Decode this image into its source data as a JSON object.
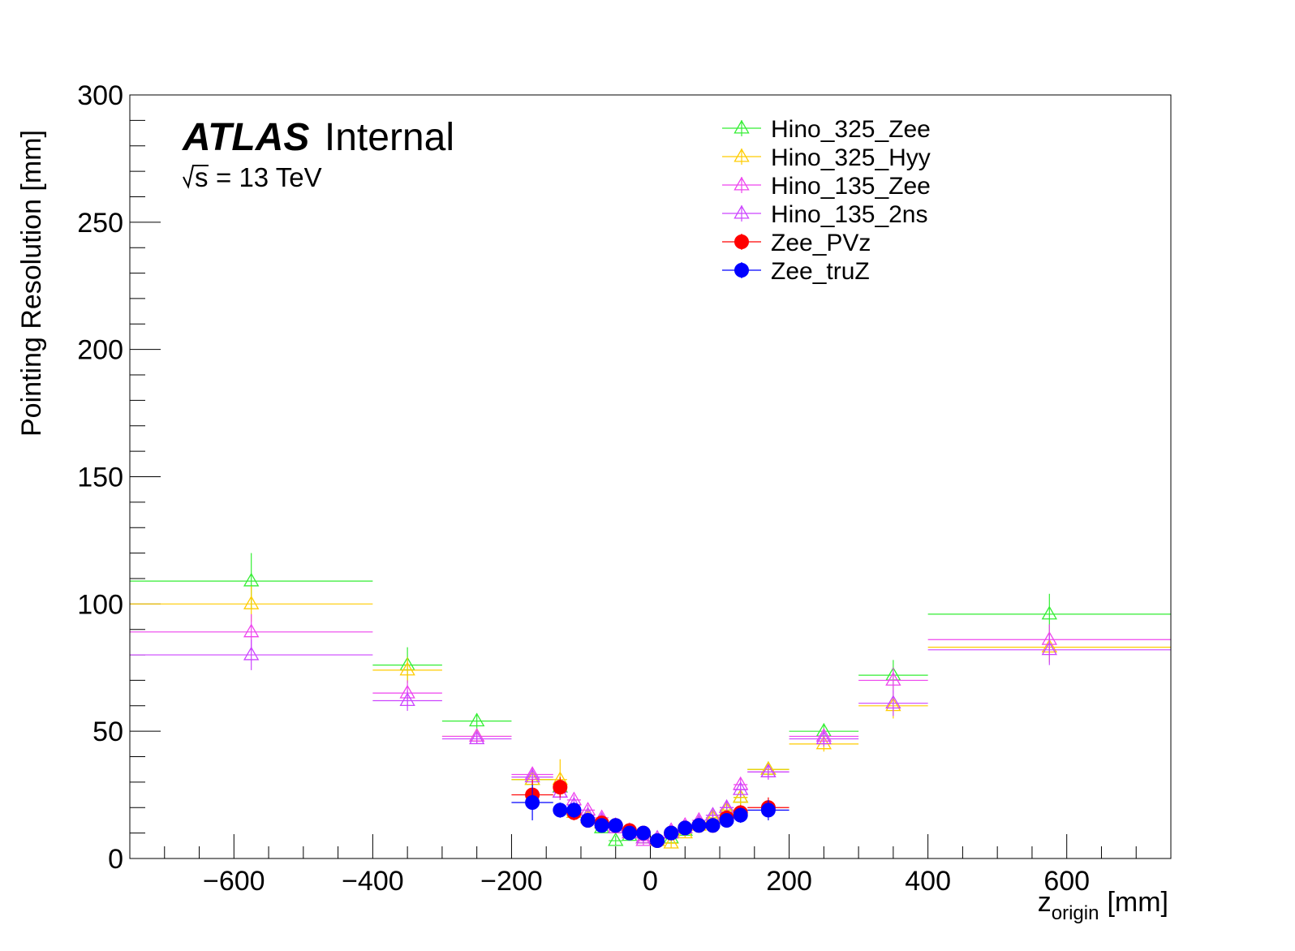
{
  "labels": {
    "experiment": "ATLAS",
    "status": "Internal",
    "energy_sqrt": "s",
    "energy_value": "= 13 TeV",
    "xlabel_main": "z",
    "xlabel_sub": "origin",
    "xlabel_unit": "[mm]",
    "ylabel": "Pointing Resolution [mm]"
  },
  "chart_data": {
    "type": "scatter",
    "xlim": [
      -750,
      750
    ],
    "ylim": [
      0,
      300
    ],
    "grid": false,
    "legend_position": "top-center",
    "x_ticks": [
      -600,
      -400,
      -200,
      0,
      200,
      400,
      600
    ],
    "x_tick_labels": [
      "−600",
      "−400",
      "−200",
      "0",
      "200",
      "400",
      "600"
    ],
    "y_ticks": [
      0,
      50,
      100,
      150,
      200,
      250,
      300
    ],
    "y_tick_labels": [
      "0",
      "50",
      "100",
      "150",
      "200",
      "250",
      "300"
    ],
    "series": [
      {
        "name": "Hino_325_Zee",
        "color": "#33ee33",
        "marker": "triangle-open",
        "points": [
          {
            "x": -575,
            "y": 109,
            "xerr": 175,
            "yerr": 11
          },
          {
            "x": -350,
            "y": 76,
            "xerr": 50,
            "yerr": 7
          },
          {
            "x": -250,
            "y": 54,
            "xerr": 50,
            "yerr": 3
          },
          {
            "x": -170,
            "y": 31,
            "xerr": 30,
            "yerr": 4
          },
          {
            "x": -130,
            "y": 28,
            "xerr": 10,
            "yerr": 4
          },
          {
            "x": -110,
            "y": 19,
            "xerr": 10,
            "yerr": 3
          },
          {
            "x": -90,
            "y": 17,
            "xerr": 10,
            "yerr": 2
          },
          {
            "x": -70,
            "y": 12,
            "xerr": 10,
            "yerr": 2
          },
          {
            "x": -50,
            "y": 7,
            "xerr": 10,
            "yerr": 2
          },
          {
            "x": -30,
            "y": 9,
            "xerr": 10,
            "yerr": 2
          },
          {
            "x": -10,
            "y": 8,
            "xerr": 10,
            "yerr": 2
          },
          {
            "x": 10,
            "y": 7,
            "xerr": 10,
            "yerr": 2
          },
          {
            "x": 30,
            "y": 8,
            "xerr": 10,
            "yerr": 2
          },
          {
            "x": 50,
            "y": 11,
            "xerr": 10,
            "yerr": 2
          },
          {
            "x": 70,
            "y": 14,
            "xerr": 10,
            "yerr": 2
          },
          {
            "x": 90,
            "y": 16,
            "xerr": 10,
            "yerr": 2
          },
          {
            "x": 110,
            "y": 19,
            "xerr": 10,
            "yerr": 3
          },
          {
            "x": 130,
            "y": 24,
            "xerr": 10,
            "yerr": 3
          },
          {
            "x": 170,
            "y": 35,
            "xerr": 30,
            "yerr": 3
          },
          {
            "x": 250,
            "y": 50,
            "xerr": 50,
            "yerr": 3
          },
          {
            "x": 350,
            "y": 72,
            "xerr": 50,
            "yerr": 6
          },
          {
            "x": 575,
            "y": 96,
            "xerr": 175,
            "yerr": 8
          }
        ]
      },
      {
        "name": "Hino_325_Hyy",
        "color": "#ffcc00",
        "marker": "triangle-open",
        "points": [
          {
            "x": -575,
            "y": 100,
            "xerr": 175,
            "yerr": 7
          },
          {
            "x": -350,
            "y": 74,
            "xerr": 50,
            "yerr": 5
          },
          {
            "x": -250,
            "y": 48,
            "xerr": 50,
            "yerr": 3
          },
          {
            "x": -170,
            "y": 31,
            "xerr": 30,
            "yerr": 4
          },
          {
            "x": -130,
            "y": 31,
            "xerr": 10,
            "yerr": 8
          },
          {
            "x": -110,
            "y": 18,
            "xerr": 10,
            "yerr": 3
          },
          {
            "x": -90,
            "y": 16,
            "xerr": 10,
            "yerr": 2
          },
          {
            "x": -70,
            "y": 14,
            "xerr": 10,
            "yerr": 2
          },
          {
            "x": -50,
            "y": 12,
            "xerr": 10,
            "yerr": 2
          },
          {
            "x": -30,
            "y": 10,
            "xerr": 10,
            "yerr": 2
          },
          {
            "x": -10,
            "y": 8,
            "xerr": 10,
            "yerr": 2
          },
          {
            "x": 10,
            "y": 7,
            "xerr": 10,
            "yerr": 2
          },
          {
            "x": 30,
            "y": 6,
            "xerr": 10,
            "yerr": 2
          },
          {
            "x": 50,
            "y": 10,
            "xerr": 10,
            "yerr": 2
          },
          {
            "x": 70,
            "y": 13,
            "xerr": 10,
            "yerr": 2
          },
          {
            "x": 90,
            "y": 16,
            "xerr": 10,
            "yerr": 2
          },
          {
            "x": 110,
            "y": 19,
            "xerr": 10,
            "yerr": 3
          },
          {
            "x": 130,
            "y": 24,
            "xerr": 10,
            "yerr": 3
          },
          {
            "x": 170,
            "y": 35,
            "xerr": 30,
            "yerr": 3
          },
          {
            "x": 250,
            "y": 45,
            "xerr": 50,
            "yerr": 3
          },
          {
            "x": 350,
            "y": 60,
            "xerr": 50,
            "yerr": 5
          },
          {
            "x": 575,
            "y": 83,
            "xerr": 175,
            "yerr": 6
          }
        ]
      },
      {
        "name": "Hino_135_Zee",
        "color": "#ee44ee",
        "marker": "triangle-open",
        "points": [
          {
            "x": -575,
            "y": 89,
            "xerr": 175,
            "yerr": 7
          },
          {
            "x": -350,
            "y": 65,
            "xerr": 50,
            "yerr": 5
          },
          {
            "x": -250,
            "y": 48,
            "xerr": 50,
            "yerr": 2
          },
          {
            "x": -170,
            "y": 33,
            "xerr": 30,
            "yerr": 3
          },
          {
            "x": -130,
            "y": 26,
            "xerr": 10,
            "yerr": 3
          },
          {
            "x": -110,
            "y": 23,
            "xerr": 10,
            "yerr": 2
          },
          {
            "x": -90,
            "y": 19,
            "xerr": 10,
            "yerr": 2
          },
          {
            "x": -70,
            "y": 16,
            "xerr": 10,
            "yerr": 2
          },
          {
            "x": -50,
            "y": 13,
            "xerr": 10,
            "yerr": 2
          },
          {
            "x": -30,
            "y": 11,
            "xerr": 10,
            "yerr": 2
          },
          {
            "x": -10,
            "y": 7,
            "xerr": 10,
            "yerr": 2
          },
          {
            "x": 10,
            "y": 8,
            "xerr": 10,
            "yerr": 2
          },
          {
            "x": 30,
            "y": 11,
            "xerr": 10,
            "yerr": 2
          },
          {
            "x": 50,
            "y": 13,
            "xerr": 10,
            "yerr": 2
          },
          {
            "x": 70,
            "y": 15,
            "xerr": 10,
            "yerr": 2
          },
          {
            "x": 90,
            "y": 17,
            "xerr": 10,
            "yerr": 2
          },
          {
            "x": 110,
            "y": 20,
            "xerr": 10,
            "yerr": 3
          },
          {
            "x": 130,
            "y": 29,
            "xerr": 10,
            "yerr": 3
          },
          {
            "x": 170,
            "y": 34,
            "xerr": 30,
            "yerr": 3
          },
          {
            "x": 250,
            "y": 48,
            "xerr": 50,
            "yerr": 3
          },
          {
            "x": 350,
            "y": 70,
            "xerr": 50,
            "yerr": 5
          },
          {
            "x": 575,
            "y": 86,
            "xerr": 175,
            "yerr": 6
          }
        ]
      },
      {
        "name": "Hino_135_2ns",
        "color": "#cc44ff",
        "marker": "triangle-open",
        "points": [
          {
            "x": -575,
            "y": 80,
            "xerr": 175,
            "yerr": 6
          },
          {
            "x": -350,
            "y": 62,
            "xerr": 50,
            "yerr": 4
          },
          {
            "x": -250,
            "y": 47,
            "xerr": 50,
            "yerr": 2
          },
          {
            "x": -170,
            "y": 32,
            "xerr": 30,
            "yerr": 3
          },
          {
            "x": -130,
            "y": 26,
            "xerr": 10,
            "yerr": 3
          },
          {
            "x": -110,
            "y": 21,
            "xerr": 10,
            "yerr": 2
          },
          {
            "x": -90,
            "y": 17,
            "xerr": 10,
            "yerr": 2
          },
          {
            "x": -70,
            "y": 15,
            "xerr": 10,
            "yerr": 2
          },
          {
            "x": -50,
            "y": 12,
            "xerr": 10,
            "yerr": 2
          },
          {
            "x": -30,
            "y": 10,
            "xerr": 10,
            "yerr": 2
          },
          {
            "x": -10,
            "y": 8,
            "xerr": 10,
            "yerr": 2
          },
          {
            "x": 10,
            "y": 8,
            "xerr": 10,
            "yerr": 2
          },
          {
            "x": 30,
            "y": 10,
            "xerr": 10,
            "yerr": 2
          },
          {
            "x": 50,
            "y": 12,
            "xerr": 10,
            "yerr": 2
          },
          {
            "x": 70,
            "y": 14,
            "xerr": 10,
            "yerr": 2
          },
          {
            "x": 90,
            "y": 17,
            "xerr": 10,
            "yerr": 2
          },
          {
            "x": 110,
            "y": 20,
            "xerr": 10,
            "yerr": 3
          },
          {
            "x": 130,
            "y": 27,
            "xerr": 10,
            "yerr": 3
          },
          {
            "x": 170,
            "y": 34,
            "xerr": 30,
            "yerr": 3
          },
          {
            "x": 250,
            "y": 47,
            "xerr": 50,
            "yerr": 3
          },
          {
            "x": 350,
            "y": 61,
            "xerr": 50,
            "yerr": 5
          },
          {
            "x": 575,
            "y": 82,
            "xerr": 175,
            "yerr": 6
          }
        ]
      },
      {
        "name": "Zee_PVz",
        "color": "#ff0000",
        "marker": "circle-filled",
        "points": [
          {
            "x": -170,
            "y": 25,
            "xerr": 30,
            "yerr": 6
          },
          {
            "x": -130,
            "y": 28,
            "xerr": 10,
            "yerr": 4
          },
          {
            "x": -110,
            "y": 18,
            "xerr": 10,
            "yerr": 3
          },
          {
            "x": -90,
            "y": 15,
            "xerr": 10,
            "yerr": 2
          },
          {
            "x": -70,
            "y": 14,
            "xerr": 10,
            "yerr": 2
          },
          {
            "x": -50,
            "y": 13,
            "xerr": 10,
            "yerr": 2
          },
          {
            "x": -30,
            "y": 11,
            "xerr": 10,
            "yerr": 2
          },
          {
            "x": -10,
            "y": 10,
            "xerr": 10,
            "yerr": 2
          },
          {
            "x": 10,
            "y": 7,
            "xerr": 10,
            "yerr": 2
          },
          {
            "x": 30,
            "y": 10,
            "xerr": 10,
            "yerr": 2
          },
          {
            "x": 50,
            "y": 12,
            "xerr": 10,
            "yerr": 2
          },
          {
            "x": 70,
            "y": 13,
            "xerr": 10,
            "yerr": 2
          },
          {
            "x": 90,
            "y": 13,
            "xerr": 10,
            "yerr": 2
          },
          {
            "x": 110,
            "y": 16,
            "xerr": 10,
            "yerr": 2
          },
          {
            "x": 130,
            "y": 18,
            "xerr": 10,
            "yerr": 3
          },
          {
            "x": 170,
            "y": 20,
            "xerr": 30,
            "yerr": 4
          }
        ]
      },
      {
        "name": "Zee_truZ",
        "color": "#0000ff",
        "marker": "circle-filled",
        "points": [
          {
            "x": -170,
            "y": 22,
            "xerr": 30,
            "yerr": 7
          },
          {
            "x": -130,
            "y": 19,
            "xerr": 10,
            "yerr": 3
          },
          {
            "x": -110,
            "y": 19,
            "xerr": 10,
            "yerr": 3
          },
          {
            "x": -90,
            "y": 15,
            "xerr": 10,
            "yerr": 2
          },
          {
            "x": -70,
            "y": 13,
            "xerr": 10,
            "yerr": 2
          },
          {
            "x": -50,
            "y": 13,
            "xerr": 10,
            "yerr": 2
          },
          {
            "x": -30,
            "y": 10,
            "xerr": 10,
            "yerr": 2
          },
          {
            "x": -10,
            "y": 10,
            "xerr": 10,
            "yerr": 2
          },
          {
            "x": 10,
            "y": 7,
            "xerr": 10,
            "yerr": 2
          },
          {
            "x": 30,
            "y": 10,
            "xerr": 10,
            "yerr": 2
          },
          {
            "x": 50,
            "y": 12,
            "xerr": 10,
            "yerr": 2
          },
          {
            "x": 70,
            "y": 13,
            "xerr": 10,
            "yerr": 2
          },
          {
            "x": 90,
            "y": 13,
            "xerr": 10,
            "yerr": 2
          },
          {
            "x": 110,
            "y": 15,
            "xerr": 10,
            "yerr": 2
          },
          {
            "x": 130,
            "y": 17,
            "xerr": 10,
            "yerr": 3
          },
          {
            "x": 170,
            "y": 19,
            "xerr": 30,
            "yerr": 4
          }
        ]
      }
    ]
  }
}
